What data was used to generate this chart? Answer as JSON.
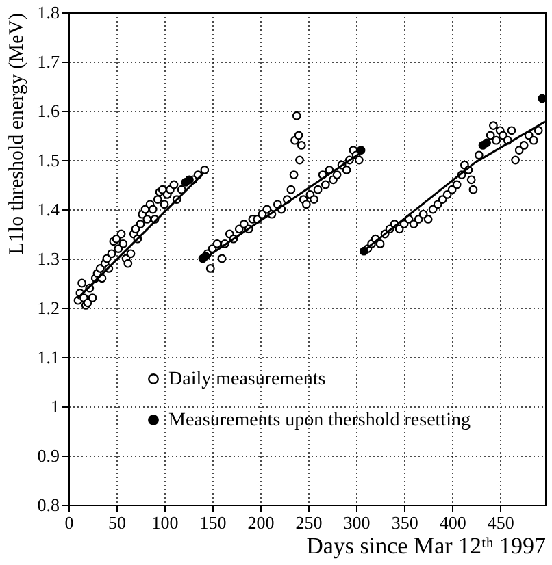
{
  "chart_data": {
    "type": "scatter",
    "xlabel": "Days since Mar 12ᵗʰ 1997",
    "ylabel": "L1lo threshold energy (MeV)",
    "xlim": [
      0,
      497
    ],
    "xticks": [
      0,
      50,
      100,
      150,
      200,
      250,
      300,
      350,
      400,
      450
    ],
    "ylim": [
      0.8,
      1.8
    ],
    "yticks": [
      0.8,
      0.9,
      1,
      1.1,
      1.2,
      1.3,
      1.4,
      1.5,
      1.6,
      1.7,
      1.8
    ],
    "grid": true,
    "legend": "bottom left",
    "marker": "circle",
    "series": [
      {
        "name": "Daily measurements",
        "color": "#000000",
        "x": [
          10,
          12,
          14,
          16,
          18,
          20,
          22,
          25,
          28,
          30,
          33,
          35,
          38,
          40,
          42,
          45,
          47,
          50,
          52,
          55,
          57,
          60,
          62,
          65,
          68,
          70,
          72,
          75,
          77,
          80,
          82,
          85,
          88,
          90,
          93,
          95,
          98,
          100,
          103,
          106,
          110,
          113,
          118,
          130,
          135,
          142,
          145,
          148,
          150,
          155,
          160,
          163,
          168,
          172,
          178,
          183,
          188,
          192,
          197,
          202,
          207,
          212,
          218,
          222,
          228,
          232,
          235,
          236,
          238,
          240,
          241,
          243,
          245,
          248,
          252,
          256,
          260,
          265,
          268,
          272,
          276,
          280,
          285,
          290,
          293,
          297,
          300,
          303,
          312,
          316,
          320,
          325,
          330,
          335,
          340,
          345,
          350,
          355,
          360,
          365,
          370,
          375,
          380,
          385,
          390,
          395,
          400,
          405,
          410,
          413,
          417,
          420,
          422,
          428,
          440,
          443,
          446,
          450,
          453,
          458,
          462,
          466,
          470,
          475,
          480,
          485,
          490
        ],
        "values": [
          1.215,
          1.23,
          1.25,
          1.22,
          1.205,
          1.21,
          1.24,
          1.22,
          1.26,
          1.27,
          1.28,
          1.26,
          1.29,
          1.3,
          1.28,
          1.31,
          1.335,
          1.34,
          1.32,
          1.35,
          1.33,
          1.3,
          1.29,
          1.31,
          1.35,
          1.36,
          1.34,
          1.37,
          1.39,
          1.4,
          1.38,
          1.41,
          1.4,
          1.38,
          1.42,
          1.435,
          1.44,
          1.41,
          1.43,
          1.44,
          1.45,
          1.42,
          1.44,
          1.46,
          1.47,
          1.48,
          1.31,
          1.28,
          1.32,
          1.33,
          1.3,
          1.33,
          1.35,
          1.34,
          1.36,
          1.37,
          1.36,
          1.38,
          1.38,
          1.39,
          1.4,
          1.39,
          1.41,
          1.4,
          1.42,
          1.44,
          1.47,
          1.54,
          1.59,
          1.55,
          1.5,
          1.53,
          1.42,
          1.41,
          1.43,
          1.42,
          1.44,
          1.47,
          1.45,
          1.48,
          1.46,
          1.47,
          1.49,
          1.48,
          1.5,
          1.52,
          1.51,
          1.5,
          1.32,
          1.33,
          1.34,
          1.33,
          1.35,
          1.36,
          1.37,
          1.36,
          1.37,
          1.38,
          1.37,
          1.38,
          1.39,
          1.38,
          1.4,
          1.41,
          1.42,
          1.43,
          1.44,
          1.45,
          1.47,
          1.49,
          1.48,
          1.46,
          1.44,
          1.51,
          1.55,
          1.57,
          1.54,
          1.56,
          1.55,
          1.54,
          1.56,
          1.5,
          1.52,
          1.53,
          1.55,
          1.54,
          1.56
        ]
      },
      {
        "name": "Measurements upon thershold resetting",
        "color": "#000000",
        "x": [
          122,
          126,
          140,
          143,
          305,
          308,
          432,
          436,
          494
        ],
        "values": [
          1.455,
          1.46,
          1.3,
          1.305,
          1.52,
          1.315,
          1.53,
          1.535,
          1.625
        ]
      },
      {
        "type": "line",
        "color": "#000000",
        "marker": "none",
        "x": [
          9.5,
          141
        ],
        "values": [
          1.219,
          1.474
        ]
      },
      {
        "type": "line",
        "color": "#000000",
        "marker": "none",
        "x": [
          141,
          304
        ],
        "values": [
          1.299,
          1.514
        ]
      },
      {
        "type": "line",
        "color": "#000000",
        "marker": "none",
        "x": [
          306,
          424,
          497
        ],
        "values": [
          1.313,
          1.495,
          1.578
        ]
      }
    ]
  }
}
